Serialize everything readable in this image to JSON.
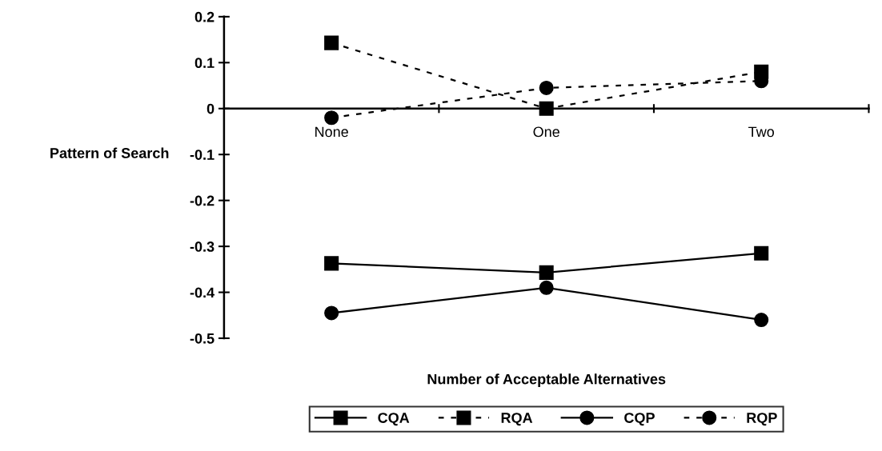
{
  "chart_data": {
    "type": "line",
    "xlabel": "Number of Acceptable Alternatives",
    "ylabel": "Pattern of Search",
    "categories": [
      "None",
      "One",
      "Two"
    ],
    "series": [
      {
        "name": "CQA",
        "color": "#000000",
        "marker": "square",
        "line_style": "solid",
        "values": [
          -0.337,
          -0.357,
          -0.315
        ]
      },
      {
        "name": "RQA",
        "color": "#000000",
        "marker": "square",
        "line_style": "dashed",
        "values": [
          0.143,
          0.0,
          0.08
        ]
      },
      {
        "name": "CQP",
        "color": "#000000",
        "marker": "circle",
        "line_style": "solid",
        "values": [
          -0.445,
          -0.39,
          -0.46
        ]
      },
      {
        "name": "RQP",
        "color": "#000000",
        "marker": "circle",
        "line_style": "dashed",
        "values": [
          -0.02,
          0.045,
          0.06
        ]
      }
    ],
    "ylim": [
      -0.5,
      0.2
    ],
    "yticks": [
      -0.5,
      -0.4,
      -0.3,
      -0.2,
      -0.1,
      0,
      0.1,
      0.2
    ],
    "grid": false,
    "legend": "bottom"
  }
}
